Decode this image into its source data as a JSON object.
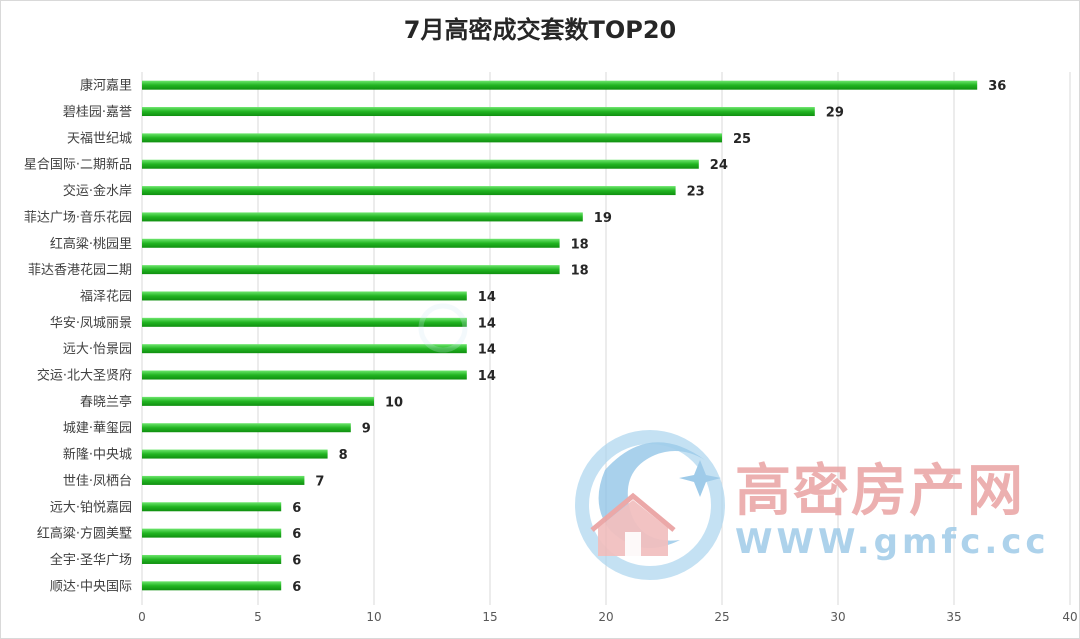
{
  "chart_data": {
    "type": "bar",
    "orientation": "horizontal",
    "title": "7月高密成交套数TOP20",
    "categories": [
      "康河嘉里",
      "碧桂园·嘉誉",
      "天福世纪城",
      "星合国际·二期新品",
      "交运·金水岸",
      "菲达广场·音乐花园",
      "红高粱·桃园里",
      "菲达香港花园二期",
      "福泽花园",
      "华安·凤城丽景",
      "远大·怡景园",
      "交运·北大圣贤府",
      "春晓兰亭",
      "城建·華玺园",
      "新隆·中央城",
      "世佳·凤栖台",
      "远大·铂悦嘉园",
      "红高粱·方圆美墅",
      "全宇·圣华广场",
      "顺达·中央国际"
    ],
    "values": [
      36,
      29,
      25,
      24,
      23,
      19,
      18,
      18,
      14,
      14,
      14,
      14,
      10,
      9,
      8,
      7,
      6,
      6,
      6,
      6
    ],
    "xlim": [
      0,
      40
    ],
    "x_ticks": [
      0,
      5,
      10,
      15,
      20,
      25,
      30,
      35,
      40
    ],
    "grid": "vertical",
    "bar_color": "#1aab1a",
    "data_labels": true
  },
  "watermark": {
    "brand": "高密房产网",
    "url": "WWW.gmfc.cc"
  },
  "colors": {
    "bar": "#1aab1a",
    "bar_highlight": "#5fe05f",
    "grid": "#d9d9d9",
    "watermark_red": "#e9a3a3",
    "watermark_blue": "#9fcbe8"
  }
}
